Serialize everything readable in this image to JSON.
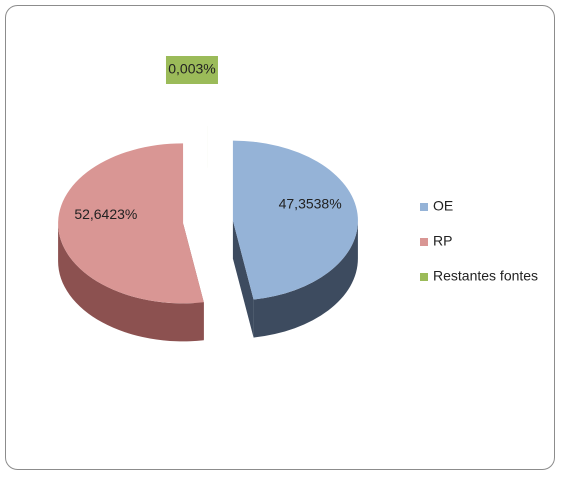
{
  "chart_data": {
    "type": "pie",
    "categories": [
      "OE",
      "RP",
      "Restantes fontes"
    ],
    "values": [
      47.3538,
      52.6423,
      0.003
    ],
    "value_labels": [
      "47,3538%",
      "52,6423%",
      "0,003%"
    ],
    "colors": [
      "#95b3d7",
      "#d99694",
      "#9bbb59"
    ],
    "side_colors": [
      "#3d4b5f",
      "#8c5150",
      "#5f7336"
    ]
  }
}
